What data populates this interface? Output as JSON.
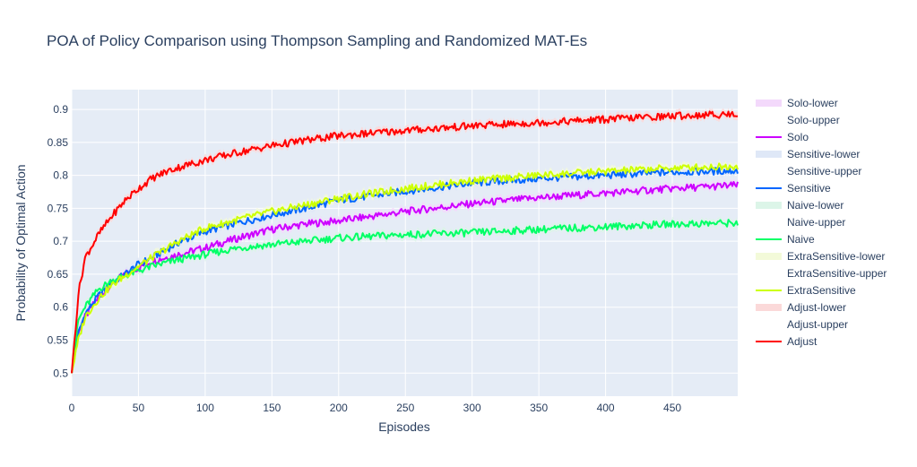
{
  "chart_data": {
    "type": "line",
    "title": "POA of Policy Comparison using Thompson Sampling and Randomized MAT-Es",
    "xlabel": "Episodes",
    "ylabel": "Probability of Optimal Action",
    "xlim": [
      0,
      499
    ],
    "ylim": [
      0.465,
      0.93
    ],
    "x_ticks": [
      0,
      50,
      100,
      150,
      200,
      250,
      300,
      350,
      400,
      450
    ],
    "x_tick_labels": [
      "0",
      "50",
      "100",
      "150",
      "200",
      "250",
      "300",
      "350",
      "400",
      "450"
    ],
    "y_ticks": [
      0.5,
      0.55,
      0.6,
      0.65,
      0.7,
      0.75,
      0.8,
      0.85,
      0.9
    ],
    "y_tick_labels": [
      "0.5",
      "0.55",
      "0.6",
      "0.65",
      "0.7",
      "0.75",
      "0.8",
      "0.85",
      "0.9"
    ],
    "grid": true,
    "legend_position": "right",
    "plot_background": "#e5ecf6",
    "series": [
      {
        "name": "Solo",
        "color": "#cc00ff",
        "band_color": "#f3d9fb",
        "x": [
          0,
          5,
          10,
          20,
          30,
          40,
          50,
          60,
          80,
          100,
          125,
          150,
          175,
          200,
          250,
          300,
          350,
          400,
          450,
          499
        ],
        "y": [
          0.5,
          0.56,
          0.585,
          0.615,
          0.635,
          0.65,
          0.66,
          0.67,
          0.68,
          0.69,
          0.705,
          0.718,
          0.726,
          0.731,
          0.745,
          0.757,
          0.766,
          0.773,
          0.78,
          0.785
        ]
      },
      {
        "name": "Sensitive",
        "color": "#0066ff",
        "band_color": "#dfe8f7",
        "x": [
          0,
          5,
          10,
          20,
          30,
          40,
          50,
          60,
          80,
          100,
          125,
          150,
          175,
          200,
          250,
          300,
          350,
          400,
          450,
          499
        ],
        "y": [
          0.5,
          0.56,
          0.59,
          0.617,
          0.637,
          0.65,
          0.665,
          0.675,
          0.698,
          0.715,
          0.728,
          0.74,
          0.75,
          0.762,
          0.776,
          0.788,
          0.795,
          0.8,
          0.805,
          0.807
        ]
      },
      {
        "name": "Naive",
        "color": "#00ff66",
        "band_color": "#dcf5e8",
        "x": [
          0,
          5,
          10,
          20,
          30,
          40,
          50,
          60,
          80,
          100,
          125,
          150,
          175,
          200,
          250,
          300,
          350,
          400,
          450,
          499
        ],
        "y": [
          0.5,
          0.58,
          0.6,
          0.627,
          0.64,
          0.648,
          0.655,
          0.662,
          0.672,
          0.68,
          0.69,
          0.695,
          0.7,
          0.705,
          0.71,
          0.713,
          0.718,
          0.722,
          0.726,
          0.728
        ]
      },
      {
        "name": "ExtraSensitive",
        "color": "#ccff00",
        "band_color": "#f3fad9",
        "x": [
          0,
          5,
          10,
          20,
          30,
          40,
          50,
          60,
          80,
          100,
          125,
          150,
          175,
          200,
          250,
          300,
          350,
          400,
          450,
          499
        ],
        "y": [
          0.5,
          0.55,
          0.585,
          0.613,
          0.633,
          0.648,
          0.662,
          0.675,
          0.7,
          0.72,
          0.733,
          0.745,
          0.755,
          0.765,
          0.78,
          0.792,
          0.8,
          0.806,
          0.811,
          0.814
        ]
      },
      {
        "name": "Adjust",
        "color": "#ff0000",
        "band_color": "#fbd9d9",
        "x": [
          0,
          5,
          10,
          20,
          30,
          40,
          50,
          60,
          70,
          80,
          100,
          125,
          150,
          175,
          200,
          250,
          300,
          350,
          400,
          450,
          499
        ],
        "y": [
          0.5,
          0.62,
          0.675,
          0.71,
          0.738,
          0.762,
          0.78,
          0.795,
          0.805,
          0.812,
          0.823,
          0.835,
          0.845,
          0.853,
          0.86,
          0.868,
          0.875,
          0.88,
          0.885,
          0.89,
          0.893
        ]
      }
    ]
  },
  "legend": [
    {
      "label": "Solo-lower",
      "kind": "band",
      "color": "#f3d9fb"
    },
    {
      "label": "Solo-upper",
      "kind": "none",
      "color": ""
    },
    {
      "label": "Solo",
      "kind": "line",
      "color": "#cc00ff"
    },
    {
      "label": "Sensitive-lower",
      "kind": "band",
      "color": "#dfe8f7"
    },
    {
      "label": "Sensitive-upper",
      "kind": "none",
      "color": ""
    },
    {
      "label": "Sensitive",
      "kind": "line",
      "color": "#0066ff"
    },
    {
      "label": "Naive-lower",
      "kind": "band",
      "color": "#dcf5e8"
    },
    {
      "label": "Naive-upper",
      "kind": "none",
      "color": ""
    },
    {
      "label": "Naive",
      "kind": "line",
      "color": "#00ff66"
    },
    {
      "label": "ExtraSensitive-lower",
      "kind": "band",
      "color": "#f3fad9"
    },
    {
      "label": "ExtraSensitive-upper",
      "kind": "none",
      "color": ""
    },
    {
      "label": "ExtraSensitive",
      "kind": "line",
      "color": "#ccff00"
    },
    {
      "label": "Adjust-lower",
      "kind": "band",
      "color": "#fbd9d9"
    },
    {
      "label": "Adjust-upper",
      "kind": "none",
      "color": ""
    },
    {
      "label": "Adjust",
      "kind": "line",
      "color": "#ff0000"
    }
  ]
}
